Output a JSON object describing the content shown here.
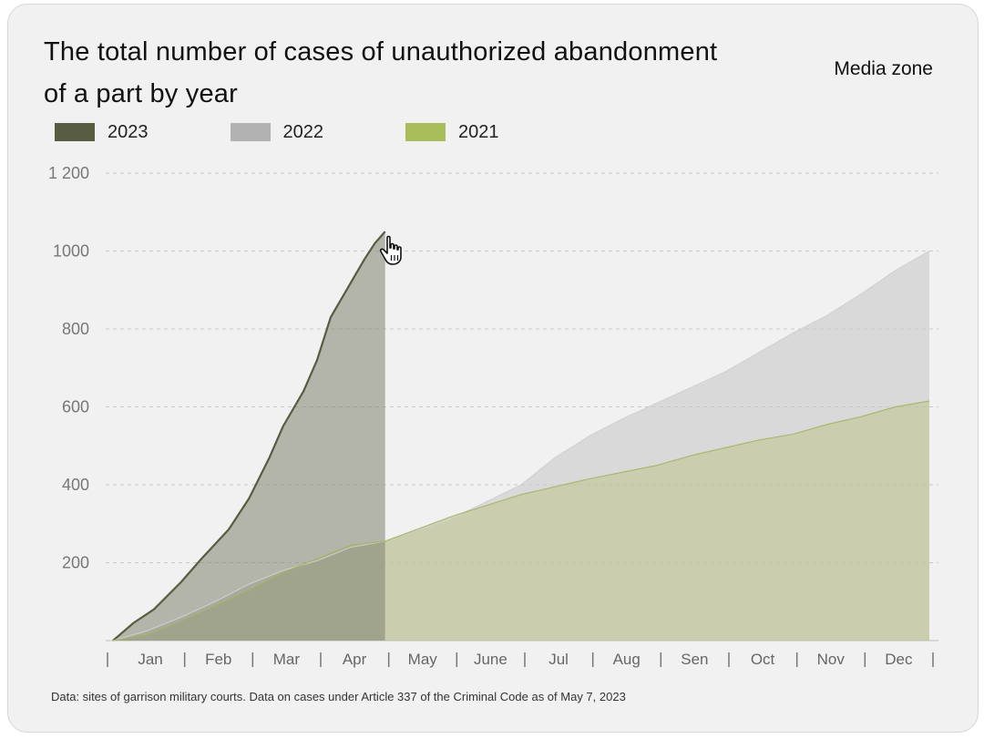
{
  "title": "The total number of cases of unauthorized abandonment of a part by year",
  "source_label": "Media zone",
  "note": "Data: sites of garrison military courts. Data on cases under Article 337 of the Criminal Code as of May 7, 2023",
  "colors": {
    "2023": "#585c40",
    "2022": "#b2b2b2",
    "2021": "#a9bd5a"
  },
  "chart_data": {
    "type": "area",
    "title": "The total number of cases of unauthorized abandonment of a part by year",
    "xlabel": "",
    "ylabel": "",
    "ylim": [
      0,
      1200
    ],
    "yticks": [
      200,
      400,
      600,
      800,
      1000,
      1200
    ],
    "ytick_labels": [
      "200",
      "400",
      "600",
      "800",
      "1000",
      "1 200"
    ],
    "month_labels": [
      "Jan",
      "Feb",
      "Mar",
      "Apr",
      "May",
      "June",
      "Jul",
      "Aug",
      "Sen",
      "Oct",
      "Nov",
      "Dec"
    ],
    "x_unit": "months from Jan 1",
    "grid": true,
    "legend": "top-left",
    "series": [
      {
        "name": "2023",
        "x": [
          0,
          0.3,
          0.6,
          1.0,
          1.3,
          1.7,
          2.0,
          2.3,
          2.5,
          2.8,
          3.0,
          3.2,
          3.5,
          3.7,
          3.85,
          4.0
        ],
        "values": [
          0,
          45,
          80,
          150,
          210,
          285,
          365,
          470,
          550,
          640,
          720,
          830,
          920,
          980,
          1020,
          1050
        ]
      },
      {
        "name": "2022",
        "x": [
          0,
          0.5,
          1.0,
          1.5,
          2.0,
          2.5,
          3.0,
          3.5,
          4.0,
          5.0,
          6.0,
          6.5,
          7.0,
          7.5,
          8.0,
          8.5,
          9.0,
          9.5,
          10.0,
          10.5,
          11.0,
          11.5,
          12.0
        ],
        "values": [
          0,
          25,
          60,
          100,
          145,
          180,
          205,
          240,
          255,
          315,
          400,
          470,
          525,
          570,
          610,
          650,
          690,
          740,
          790,
          835,
          890,
          950,
          1000
        ]
      },
      {
        "name": "2021",
        "x": [
          0,
          0.5,
          1.0,
          1.5,
          2.0,
          2.5,
          3.0,
          3.5,
          4.0,
          5.0,
          6.0,
          7.0,
          8.0,
          8.5,
          9.0,
          9.5,
          10.0,
          10.5,
          11.0,
          11.5,
          12.0
        ],
        "values": [
          0,
          15,
          50,
          90,
          130,
          175,
          210,
          245,
          255,
          320,
          375,
          415,
          450,
          475,
          495,
          515,
          530,
          555,
          575,
          600,
          615
        ]
      }
    ]
  }
}
